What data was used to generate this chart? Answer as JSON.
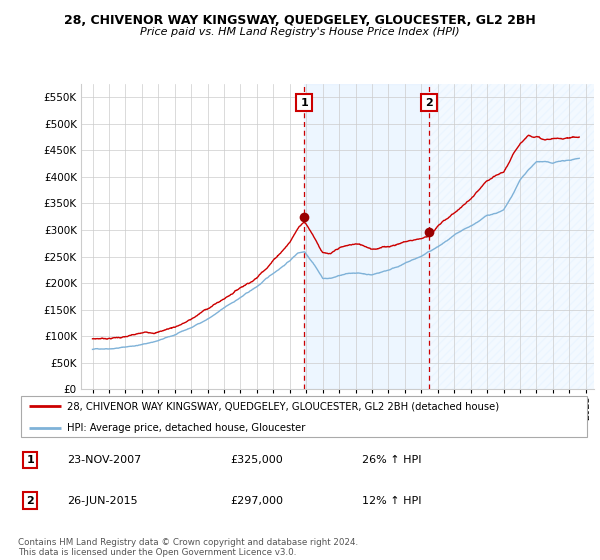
{
  "title": "28, CHIVENOR WAY KINGSWAY, QUEDGELEY, GLOUCESTER, GL2 2BH",
  "subtitle": "Price paid vs. HM Land Registry's House Price Index (HPI)",
  "ylim": [
    0,
    575000
  ],
  "yticks": [
    0,
    50000,
    100000,
    150000,
    200000,
    250000,
    300000,
    350000,
    400000,
    450000,
    500000,
    550000
  ],
  "ytick_labels": [
    "£0",
    "£50K",
    "£100K",
    "£150K",
    "£200K",
    "£250K",
    "£300K",
    "£350K",
    "£400K",
    "£450K",
    "£500K",
    "£550K"
  ],
  "sale1_year": 2007.875,
  "sale1_price": 325000,
  "sale2_year": 2015.458,
  "sale2_price": 297000,
  "hpi_color": "#7fb2d8",
  "price_color": "#cc0000",
  "shade_color": "#ddeeff",
  "grid_color": "#cccccc",
  "legend_line1": "28, CHIVENOR WAY KINGSWAY, QUEDGELEY, GLOUCESTER, GL2 2BH (detached house)",
  "legend_line2": "HPI: Average price, detached house, Gloucester",
  "footnote": "Contains HM Land Registry data © Crown copyright and database right 2024.\nThis data is licensed under the Open Government Licence v3.0.",
  "hpi_key_years": [
    1995,
    1996,
    1997,
    1998,
    1999,
    2000,
    2001,
    2002,
    2003,
    2004,
    2005,
    2006,
    2007,
    2007.5,
    2007.9,
    2008.5,
    2009,
    2009.5,
    2010,
    2011,
    2012,
    2013,
    2014,
    2015,
    2016,
    2017,
    2018,
    2019,
    2020,
    2020.5,
    2021,
    2021.5,
    2022,
    2022.5,
    2023,
    2023.5,
    2024,
    2024.5
  ],
  "hpi_key_vals": [
    75000,
    78000,
    82000,
    87000,
    95000,
    105000,
    118000,
    135000,
    155000,
    175000,
    195000,
    220000,
    245000,
    260000,
    263000,
    240000,
    215000,
    215000,
    220000,
    225000,
    222000,
    232000,
    245000,
    258000,
    275000,
    295000,
    310000,
    330000,
    340000,
    365000,
    395000,
    415000,
    430000,
    430000,
    425000,
    430000,
    430000,
    435000
  ],
  "prop_key_years": [
    1995,
    1996,
    1997,
    1998,
    1999,
    2000,
    2001,
    2002,
    2003,
    2004,
    2005,
    2006,
    2007,
    2007.5,
    2007.875,
    2008.5,
    2009,
    2009.5,
    2010,
    2011,
    2012,
    2013,
    2014,
    2015,
    2015.458,
    2016,
    2017,
    2018,
    2019,
    2020,
    2020.5,
    2021,
    2021.5,
    2022,
    2022.5,
    2023,
    2023.5,
    2024,
    2024.5
  ],
  "prop_key_vals": [
    95000,
    97000,
    100000,
    104000,
    108000,
    118000,
    132000,
    152000,
    170000,
    193000,
    213000,
    248000,
    283000,
    310000,
    325000,
    295000,
    267000,
    262000,
    272000,
    278000,
    270000,
    275000,
    285000,
    292000,
    297000,
    315000,
    340000,
    365000,
    395000,
    408000,
    435000,
    462000,
    478000,
    478000,
    470000,
    472000,
    470000,
    475000,
    475000
  ]
}
